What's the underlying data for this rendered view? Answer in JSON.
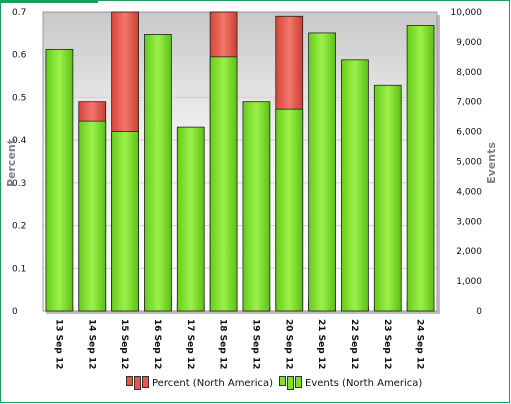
{
  "colors": {
    "percent": "#e8574a",
    "events": "#7de02a",
    "frame_top": "#1a9e5a"
  },
  "legend": {
    "percent_label": "Percent (North America)",
    "events_label": "Events (North America)"
  },
  "chart_data": {
    "type": "bar",
    "categories": [
      "13 Sep 12",
      "14 Sep 12",
      "15 Sep 12",
      "16 Sep 12",
      "17 Sep 12",
      "18 Sep 12",
      "19 Sep 12",
      "20 Sep 12",
      "21 Sep 12",
      "22 Sep 12",
      "23 Sep 12",
      "24 Sep 12"
    ],
    "series": [
      {
        "name": "Percent (North America)",
        "axis": "left",
        "values": [
          0.01,
          0.49,
          0.7,
          0.03,
          0.02,
          0.7,
          0.01,
          0.69,
          0.02,
          0.01,
          0.01,
          0.02
        ]
      },
      {
        "name": "Events (North America)",
        "axis": "right",
        "values": [
          8750,
          6350,
          6000,
          9250,
          6150,
          8500,
          7000,
          6750,
          9300,
          8400,
          7550,
          9550
        ]
      }
    ],
    "ylabel_left": "Percent",
    "ylabel_right": "Events",
    "ylim_left": [
      0,
      0.7
    ],
    "ylim_right": [
      0,
      10000
    ],
    "yticks_left": [
      "0",
      "0.1",
      "0.2",
      "0.3",
      "0.4",
      "0.5",
      "0.6",
      "0.7"
    ],
    "yticks_right": [
      "0",
      "1,000",
      "2,000",
      "3,000",
      "4,000",
      "5,000",
      "6,000",
      "7,000",
      "8,000",
      "9,000",
      "10,000"
    ],
    "grid": true,
    "legend_position": "bottom"
  }
}
